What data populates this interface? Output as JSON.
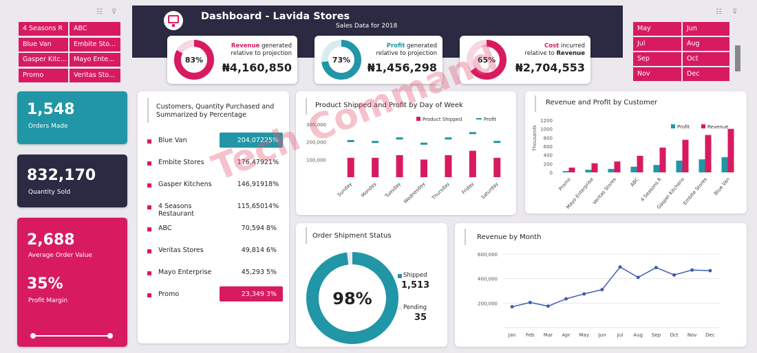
{
  "header": {
    "title": "Dashboard - Lavida Stores",
    "subtitle": "Sales Data for 2018"
  },
  "customer_slicer": [
    "4 Seasons R",
    "ABC",
    "Blue Van",
    "Embite Sto...",
    "Gasper Kitc...",
    "Mayo Ente...",
    "Promo",
    "Veritas Sto..."
  ],
  "month_slicer": [
    "May",
    "Jun",
    "Jul",
    "Aug",
    "Sep",
    "Oct",
    "Nov",
    "Dec"
  ],
  "kpis": [
    {
      "pct": "83%",
      "pct_value": 0.83,
      "highlight": "Revenue",
      "line1_rest": " generated",
      "line2": "relative to projection",
      "value": "₦4,160,850",
      "color": "#d81b60"
    },
    {
      "pct": "73%",
      "pct_value": 0.73,
      "highlight": "Profit",
      "line1_rest": " generated",
      "line2": "relative to projection",
      "value": "₦1,456,298",
      "color": "#2196a6"
    },
    {
      "pct": "65%",
      "pct_value": 0.65,
      "highlight": "Cost",
      "line1_rest": " incurred",
      "line2_prefix": "relative to ",
      "line2_strong": "Revenue",
      "value": "₦2,704,553",
      "color": "#d81b60"
    }
  ],
  "tiles": {
    "orders": {
      "value": "1,548",
      "label": "Orders Made"
    },
    "quantity": {
      "value": "832,170",
      "label": "Quantity Sold"
    },
    "aov": {
      "value": "2,688",
      "label": "Average Order Value"
    },
    "margin": {
      "value": "35%",
      "label": "Profit Margin"
    }
  },
  "customers_table": {
    "title_line1": "Customers, Quantity Purchased and",
    "title_line2": "Summarized by Percentage",
    "rows": [
      {
        "name": "Blue Van",
        "qty": "204,072",
        "pct": "25%",
        "highlight": "#2196a6"
      },
      {
        "name": "Embite Stores",
        "qty": "176,479",
        "pct": "21%"
      },
      {
        "name": "Gasper Kitchens",
        "qty": "146,919",
        "pct": "18%"
      },
      {
        "name": "4 Seasons Restaurant",
        "qty": "115,650",
        "pct": "14%"
      },
      {
        "name": "ABC",
        "qty": "70,594",
        "pct": "8%"
      },
      {
        "name": "Veritas Stores",
        "qty": "49,814",
        "pct": "6%"
      },
      {
        "name": "Mayo Enterprise",
        "qty": "45,293",
        "pct": "5%"
      },
      {
        "name": "Promo",
        "qty": "23,349",
        "pct": "3%",
        "highlight": "#d81b60"
      }
    ]
  },
  "shipment": {
    "title": "Order Shipment Status",
    "pct": "98%",
    "pct_value": 0.98,
    "shipped_label": "Shipped",
    "shipped_value": "1,513",
    "pending_label": "Pending",
    "pending_value": "35"
  },
  "watermark": "Tech Command",
  "chart_data": [
    {
      "type": "bar",
      "title": "Product Shipped and Profit by Day of Week",
      "categories": [
        "Sunday",
        "Monday",
        "Tuesday",
        "Wednesday",
        "Thursday",
        "Friday",
        "Saturday"
      ],
      "series": [
        {
          "name": "Product Shipped",
          "type": "bar",
          "color": "#d81b60",
          "values": [
            110000,
            110000,
            125000,
            100000,
            125000,
            150000,
            110000
          ]
        },
        {
          "name": "Profit",
          "type": "marker",
          "color": "#2196a6",
          "values": [
            205000,
            200000,
            220000,
            190000,
            220000,
            250000,
            200000
          ]
        }
      ],
      "yticks": [
        "100,000",
        "200,000",
        "300,000"
      ],
      "ylim": [
        0,
        300000
      ],
      "legend": "top-right"
    },
    {
      "type": "bar",
      "title": "Revenue and Profit by Customer",
      "ylabel": "Thousands",
      "categories": [
        "Promo",
        "Mayo Enterprise",
        "Veritas Stores",
        "ABC",
        "4 Seasons R",
        "Gasper Kitchens",
        "Embite Stores",
        "Blue Van"
      ],
      "series": [
        {
          "name": "Profit",
          "color": "#2196a6",
          "values": [
            30,
            60,
            80,
            130,
            170,
            270,
            300,
            350
          ]
        },
        {
          "name": "Revenue",
          "color": "#d81b60",
          "values": [
            110,
            210,
            250,
            380,
            570,
            750,
            860,
            1000
          ]
        }
      ],
      "yticks": [
        "0",
        "200",
        "400",
        "600",
        "800",
        "1000",
        "1200"
      ],
      "ylim": [
        0,
        1200
      ],
      "legend": "top-right"
    },
    {
      "type": "line",
      "title": "Revenue by Month",
      "categories": [
        "Jan",
        "Feb",
        "Mar",
        "Apr",
        "May",
        "Jun",
        "Jul",
        "Aug",
        "Sep",
        "Oct",
        "Nov",
        "Dec"
      ],
      "series": [
        {
          "name": "Revenue",
          "color": "#3f5bb5",
          "values": [
            170000,
            205000,
            175000,
            235000,
            275000,
            310000,
            495000,
            410000,
            490000,
            430000,
            470000,
            465000
          ]
        }
      ],
      "yticks": [
        "200,000",
        "400,000",
        "600,000"
      ],
      "ylim": [
        0,
        600000
      ]
    }
  ]
}
